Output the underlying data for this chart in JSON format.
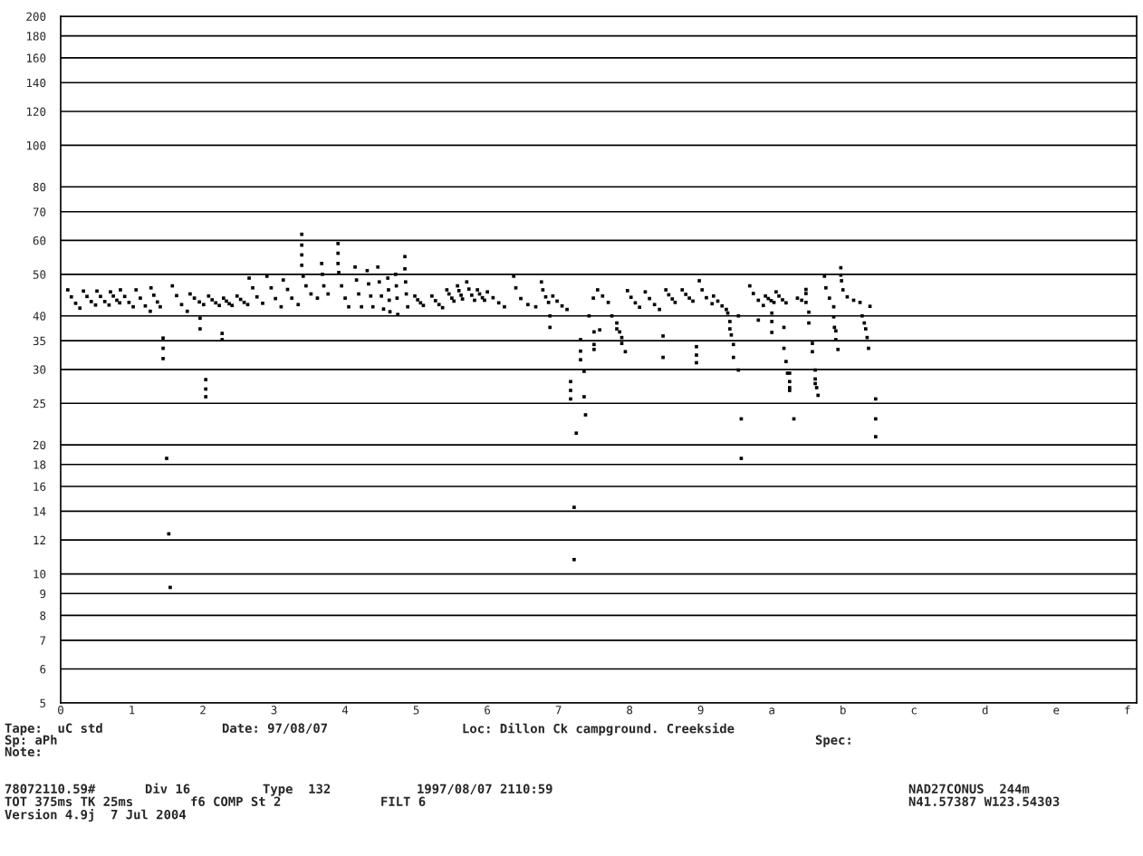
{
  "chart_data": {
    "type": "scatter",
    "color": "#000000",
    "marker": "square",
    "log": "y",
    "grid": "y",
    "xlim": [
      0,
      15.13
    ],
    "ylim": [
      5,
      200
    ],
    "xticks": [
      0,
      1,
      2,
      3,
      4,
      5,
      6,
      7,
      8,
      9,
      {
        "value": 10,
        "label": "a"
      },
      {
        "value": 11,
        "label": "b"
      },
      {
        "value": 12,
        "label": "c"
      },
      {
        "value": 13,
        "label": "d"
      },
      {
        "value": 14,
        "label": "e"
      },
      {
        "value": 15,
        "label": "f"
      }
    ],
    "yticks": [
      5,
      6,
      7,
      8,
      9,
      10,
      12,
      14,
      16,
      18,
      20,
      25,
      30,
      35,
      40,
      50,
      60,
      70,
      80,
      100,
      120,
      140,
      160,
      180,
      200
    ],
    "annotations": [
      "Tape:  uC std",
      "Date: 97/08/07",
      "Loc: Dillon Ck campground. Creekside",
      "Sp: aPh",
      "Spec:",
      "Note:",
      "78072110.59#",
      "Div 16",
      "Type  132",
      "1997/08/07 2110:59",
      "NAD27CONUS  244m",
      "TOT 375ms TK 25ms",
      "f6 COMP St 2",
      "FILT 6",
      "N41.57387 W123.54303",
      "Version 4.9j  7 Jul 2004"
    ],
    "x": [
      0.1,
      0.15,
      0.21,
      0.27,
      0.32,
      0.37,
      0.43,
      0.49,
      0.51,
      0.56,
      0.62,
      0.68,
      0.7,
      0.74,
      0.79,
      0.83,
      0.84,
      0.9,
      0.96,
      1.02,
      1.06,
      1.12,
      1.19,
      1.26,
      1.27,
      1.31,
      1.36,
      1.4,
      1.57,
      1.63,
      1.7,
      1.78,
      1.82,
      1.88,
      1.95,
      2.01,
      2.08,
      2.13,
      2.18,
      2.23,
      2.29,
      2.33,
      2.37,
      2.41,
      2.48,
      2.53,
      2.58,
      2.63,
      2.65,
      2.7,
      2.76,
      2.84,
      2.9,
      2.96,
      3.02,
      3.1,
      3.13,
      3.19,
      3.25,
      3.34,
      3.39,
      3.39,
      3.39,
      3.39,
      3.41,
      3.45,
      3.52,
      3.61,
      3.67,
      3.68,
      3.7,
      3.76,
      3.9,
      3.9,
      3.9,
      3.91,
      3.95,
      4.0,
      4.05,
      4.14,
      4.16,
      4.19,
      4.23,
      4.31,
      4.33,
      4.36,
      4.39,
      4.46,
      4.48,
      4.51,
      4.54,
      4.6,
      4.61,
      4.62,
      4.63,
      4.71,
      4.72,
      4.73,
      4.74,
      4.84,
      4.84,
      4.85,
      4.86,
      4.88,
      4.98,
      5.02,
      5.06,
      5.1,
      5.22,
      5.27,
      5.32,
      5.37,
      5.43,
      5.46,
      5.5,
      5.53,
      5.58,
      5.6,
      5.63,
      5.65,
      5.71,
      5.74,
      5.78,
      5.82,
      5.86,
      5.89,
      5.93,
      5.96,
      6.0,
      6.08,
      6.16,
      6.24,
      6.37,
      6.4,
      6.47,
      6.57,
      6.68,
      6.76,
      6.78,
      6.82,
      6.86,
      6.92,
      6.98,
      7.05,
      7.12,
      7.49,
      7.55,
      7.62,
      7.7,
      7.97,
      8.02,
      8.08,
      8.14,
      8.22,
      8.28,
      8.35,
      8.42,
      8.51,
      8.55,
      8.6,
      8.64,
      8.74,
      8.79,
      8.84,
      8.89,
      8.98,
      9.02,
      9.08,
      9.16,
      9.18,
      9.24,
      9.3,
      9.36,
      9.69,
      9.74,
      9.81,
      9.88,
      9.91,
      9.95,
      9.99,
      10.03,
      10.06,
      10.1,
      10.15,
      10.2,
      10.36,
      10.42,
      10.48,
      10.48,
      10.48,
      10.74,
      10.76,
      10.81,
      10.87,
      10.97,
      10.97,
      10.98,
      11.0,
      11.06,
      11.15,
      11.24,
      11.38,
      1.44,
      1.44,
      1.44,
      1.49,
      1.52,
      1.54,
      1.96,
      1.96,
      2.04,
      2.04,
      2.04,
      2.27,
      2.27,
      6.88,
      6.88,
      7.17,
      7.17,
      7.17,
      7.31,
      7.31,
      7.31,
      7.36,
      7.36,
      7.38,
      7.25,
      7.22,
      7.22,
      7.43,
      7.5,
      7.5,
      7.5,
      7.58,
      7.75,
      7.82,
      7.82,
      7.86,
      7.89,
      7.89,
      7.94,
      8.47,
      8.47,
      8.94,
      8.94,
      8.94,
      9.38,
      9.41,
      9.41,
      9.43,
      9.46,
      9.46,
      9.53,
      9.53,
      9.57,
      9.57,
      9.81,
      10.0,
      10.0,
      10.0,
      10.17,
      10.17,
      10.2,
      10.22,
      10.25,
      10.25,
      10.25,
      10.25,
      10.31,
      10.52,
      10.52,
      10.57,
      10.57,
      10.61,
      10.61,
      10.61,
      10.63,
      10.65,
      10.87,
      10.88,
      10.9,
      10.9,
      10.93,
      11.27,
      11.3,
      11.32,
      11.34,
      11.36,
      11.46,
      11.46,
      11.46
    ],
    "values": [
      46.0,
      44.3,
      42.8,
      41.7,
      45.7,
      44.4,
      43.2,
      42.4,
      45.7,
      44.4,
      43.2,
      42.4,
      45.5,
      44.5,
      43.5,
      42.9,
      46.0,
      44.4,
      43.0,
      42.0,
      46.0,
      44.0,
      42.2,
      41.0,
      46.5,
      44.7,
      43.1,
      42.0,
      47.0,
      44.6,
      42.5,
      41.0,
      45.0,
      44.0,
      43.1,
      42.5,
      44.5,
      43.6,
      42.9,
      42.3,
      44.0,
      43.3,
      42.7,
      42.3,
      44.5,
      43.7,
      43.0,
      42.5,
      49.0,
      46.5,
      44.3,
      42.8,
      49.5,
      46.5,
      43.9,
      42.0,
      48.5,
      46.1,
      44.0,
      42.5,
      62.0,
      58.5,
      55.5,
      52.5,
      49.5,
      47.0,
      45.0,
      44.0,
      53.0,
      50.0,
      47.0,
      45.0,
      59.0,
      56.0,
      53.0,
      50.5,
      47.0,
      44.0,
      42.0,
      52.0,
      48.5,
      45.0,
      42.0,
      51.0,
      47.5,
      44.5,
      42.0,
      52.0,
      48.0,
      44.5,
      41.5,
      49.0,
      46.0,
      43.5,
      40.9,
      50.0,
      47.0,
      44.0,
      40.3,
      55.0,
      51.5,
      48.0,
      45.0,
      42.0,
      44.5,
      43.6,
      42.9,
      42.3,
      44.5,
      43.4,
      42.5,
      41.8,
      46.0,
      45.0,
      44.0,
      43.3,
      47.0,
      45.8,
      44.7,
      43.8,
      48.0,
      46.2,
      44.7,
      43.5,
      46.0,
      45.0,
      44.1,
      43.5,
      45.5,
      44.1,
      42.9,
      42.0,
      49.5,
      46.5,
      43.9,
      42.5,
      42.0,
      48.0,
      46.0,
      44.3,
      43.0,
      44.5,
      43.3,
      42.2,
      41.4,
      44.0,
      46.0,
      44.5,
      43.0,
      45.8,
      44.2,
      42.9,
      41.9,
      45.5,
      43.9,
      42.5,
      41.4,
      46.0,
      44.8,
      43.8,
      43.0,
      46.0,
      44.9,
      44.0,
      43.3,
      48.3,
      46.0,
      44.1,
      42.7,
      44.5,
      43.3,
      42.2,
      41.4,
      47.0,
      45.1,
      43.5,
      42.3,
      44.5,
      43.9,
      43.4,
      43.0,
      45.5,
      44.5,
      43.6,
      42.9,
      44.0,
      43.5,
      43.0,
      46.1,
      45.1,
      49.5,
      46.5,
      44.0,
      42.0,
      51.8,
      49.8,
      48.3,
      46.0,
      44.3,
      43.5,
      43.0,
      42.1,
      35.5,
      33.6,
      31.8,
      18.6,
      12.4,
      9.3,
      39.5,
      37.3,
      28.4,
      27.0,
      25.9,
      36.4,
      35.2,
      40.0,
      37.6,
      28.1,
      26.8,
      25.6,
      35.2,
      33.1,
      31.6,
      29.7,
      25.9,
      23.5,
      21.3,
      14.3,
      10.8,
      40.0,
      36.7,
      34.3,
      33.4,
      37.1,
      40.0,
      38.5,
      37.3,
      36.7,
      35.6,
      34.5,
      33.0,
      35.9,
      32.0,
      33.9,
      32.4,
      31.1,
      40.6,
      38.8,
      37.3,
      36.1,
      34.3,
      32.0,
      29.9,
      40.0,
      23.0,
      18.6,
      39.1,
      40.6,
      38.8,
      36.6,
      37.6,
      33.6,
      31.3,
      29.4,
      28.1,
      27.2,
      26.8,
      29.4,
      23.0,
      40.8,
      38.5,
      34.5,
      33.0,
      29.9,
      28.5,
      27.8,
      27.2,
      26.1,
      39.8,
      37.6,
      36.9,
      35.2,
      33.4,
      40.0,
      38.5,
      37.3,
      35.6,
      33.6,
      25.6,
      23.0,
      20.9
    ]
  }
}
